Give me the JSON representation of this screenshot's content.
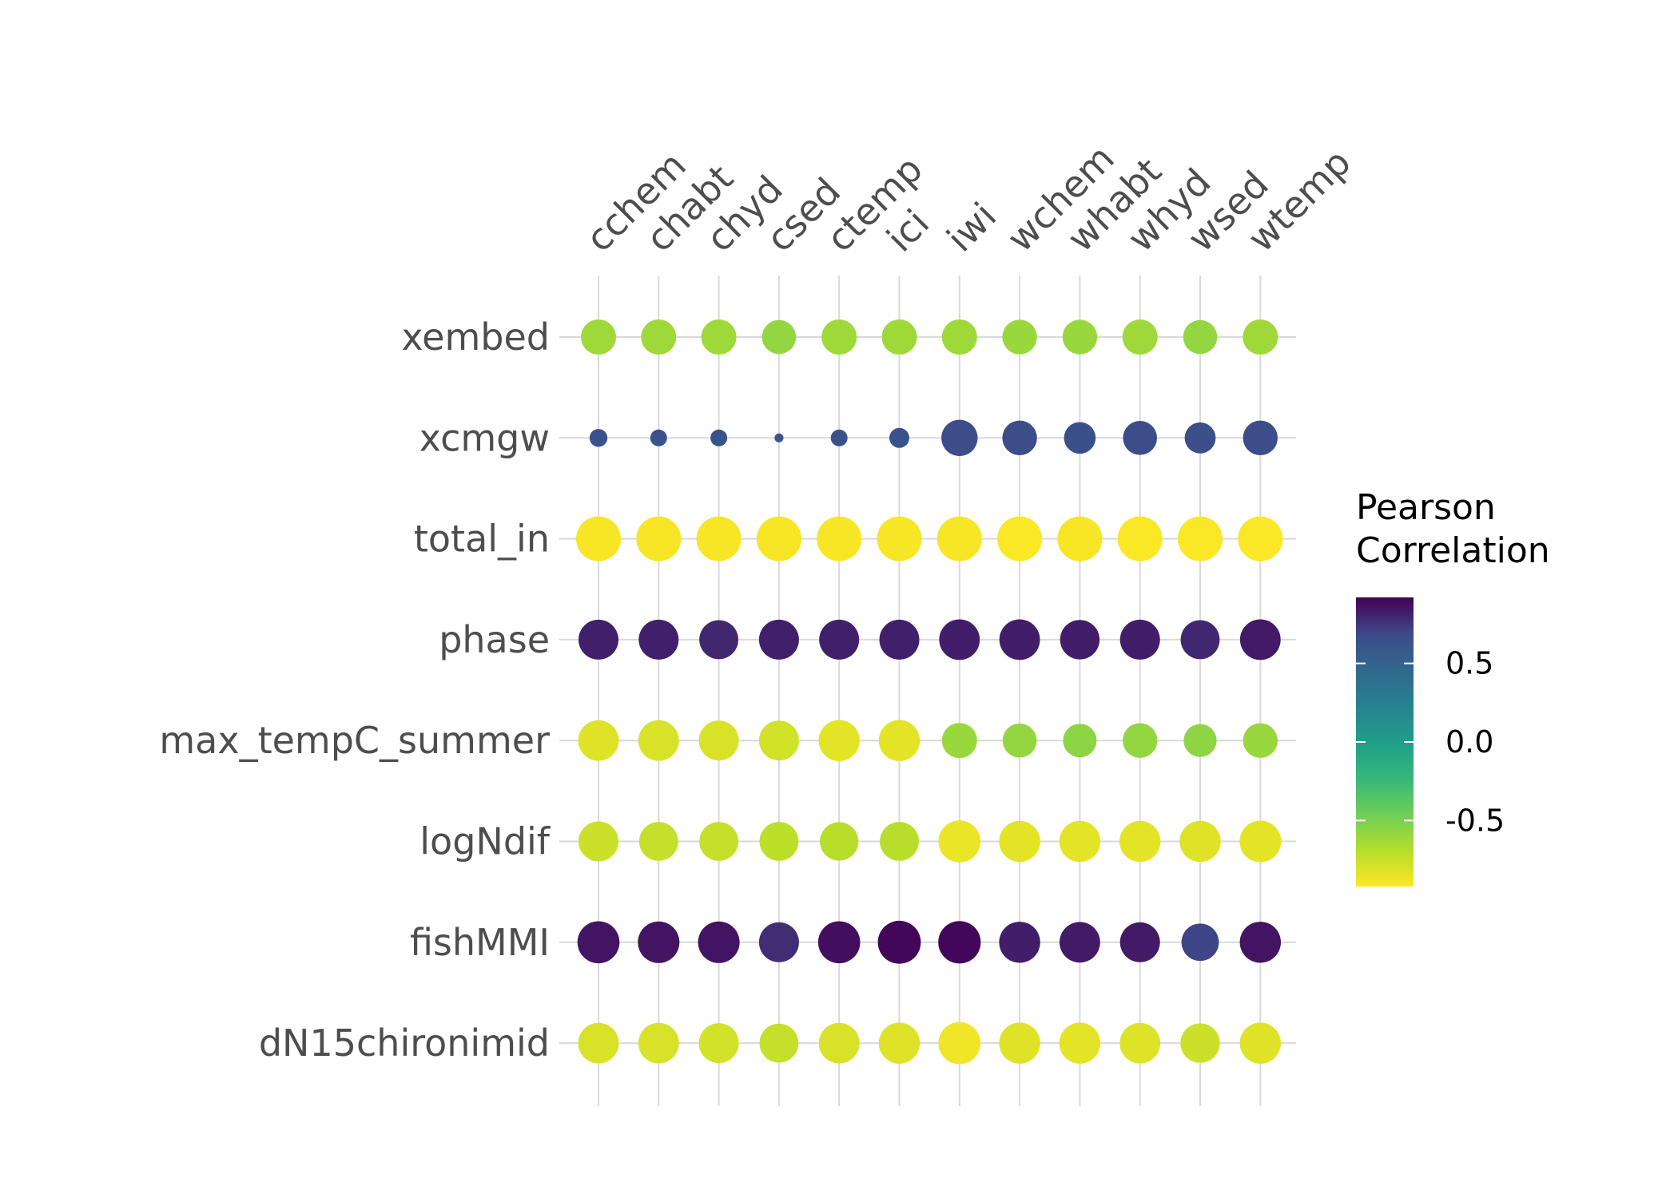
{
  "chart_data": {
    "type": "bubble_correlation_matrix",
    "columns": [
      "cchem",
      "chabt",
      "chyd",
      "csed",
      "ctemp",
      "ici",
      "iwi",
      "wchem",
      "whabt",
      "whyd",
      "wsed",
      "wtemp"
    ],
    "rows": [
      "xembed",
      "xcmgw",
      "total_in",
      "phase",
      "max_tempC_summer",
      "logNdif",
      "fishMMI",
      "dN15chironimid"
    ],
    "values": [
      [
        -0.62,
        -0.62,
        -0.62,
        -0.58,
        -0.62,
        -0.62,
        -0.62,
        -0.6,
        -0.6,
        -0.62,
        -0.58,
        -0.62
      ],
      [
        0.62,
        0.62,
        0.62,
        0.6,
        0.62,
        0.62,
        0.66,
        0.66,
        0.64,
        0.66,
        0.64,
        0.66
      ],
      [
        -0.9,
        -0.9,
        -0.9,
        -0.9,
        -0.9,
        -0.9,
        -0.9,
        -0.91,
        -0.9,
        -0.91,
        -0.91,
        -0.91
      ],
      [
        0.82,
        0.82,
        0.8,
        0.82,
        0.82,
        0.82,
        0.83,
        0.83,
        0.83,
        0.83,
        0.8,
        0.84
      ],
      [
        -0.82,
        -0.8,
        -0.8,
        -0.78,
        -0.84,
        -0.84,
        -0.6,
        -0.58,
        -0.56,
        -0.58,
        -0.56,
        -0.6
      ],
      [
        -0.76,
        -0.74,
        -0.74,
        -0.72,
        -0.7,
        -0.7,
        -0.86,
        -0.84,
        -0.84,
        -0.84,
        -0.82,
        -0.84
      ],
      [
        0.86,
        0.86,
        0.86,
        0.78,
        0.88,
        0.9,
        0.9,
        0.83,
        0.84,
        0.84,
        0.7,
        0.86
      ],
      [
        -0.8,
        -0.8,
        -0.78,
        -0.74,
        -0.8,
        -0.82,
        -0.88,
        -0.82,
        -0.84,
        -0.82,
        -0.76,
        -0.82
      ]
    ],
    "sizes": [
      [
        0.62,
        0.62,
        0.62,
        0.58,
        0.62,
        0.62,
        0.62,
        0.6,
        0.6,
        0.62,
        0.58,
        0.62
      ],
      [
        0.16,
        0.14,
        0.14,
        0.04,
        0.14,
        0.2,
        0.66,
        0.6,
        0.5,
        0.58,
        0.48,
        0.6
      ],
      [
        1.0,
        1.0,
        1.0,
        1.0,
        1.0,
        1.0,
        1.0,
        1.0,
        1.0,
        1.0,
        1.0,
        1.0
      ],
      [
        0.8,
        0.8,
        0.76,
        0.8,
        0.8,
        0.8,
        0.82,
        0.82,
        0.78,
        0.8,
        0.76,
        0.82
      ],
      [
        0.82,
        0.82,
        0.8,
        0.8,
        0.84,
        0.84,
        0.62,
        0.58,
        0.56,
        0.6,
        0.54,
        0.6
      ],
      [
        0.8,
        0.76,
        0.76,
        0.76,
        0.74,
        0.76,
        0.88,
        0.84,
        0.84,
        0.84,
        0.84,
        0.86
      ],
      [
        0.88,
        0.86,
        0.86,
        0.8,
        0.88,
        0.92,
        0.9,
        0.84,
        0.82,
        0.8,
        0.7,
        0.84
      ],
      [
        0.82,
        0.82,
        0.8,
        0.76,
        0.82,
        0.84,
        0.88,
        0.84,
        0.84,
        0.82,
        0.78,
        0.84
      ]
    ],
    "legend": {
      "title_lines": [
        "Pearson",
        "Correlation"
      ],
      "ticks": [
        {
          "value": 0.5,
          "label": "0.5"
        },
        {
          "value": 0.0,
          "label": "0.0"
        },
        {
          "value": -0.5,
          "label": "-0.5"
        }
      ],
      "range": [
        -0.92,
        0.92
      ],
      "placement": "right"
    },
    "colormap": "viridis-reversed",
    "grid": true
  }
}
